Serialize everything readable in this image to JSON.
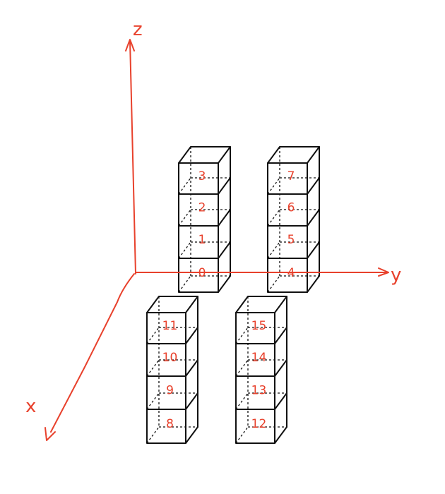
{
  "axes": {
    "x_label": "x",
    "y_label": "y",
    "z_label": "z",
    "color": "#e8412c"
  },
  "stacks": [
    {
      "labels": [
        "0",
        "1",
        "2",
        "3"
      ]
    },
    {
      "labels": [
        "4",
        "5",
        "6",
        "7"
      ]
    },
    {
      "labels": [
        "8",
        "9",
        "10",
        "11"
      ]
    },
    {
      "labels": [
        "12",
        "13",
        "14",
        "15"
      ]
    }
  ],
  "ink_color": "#111111"
}
